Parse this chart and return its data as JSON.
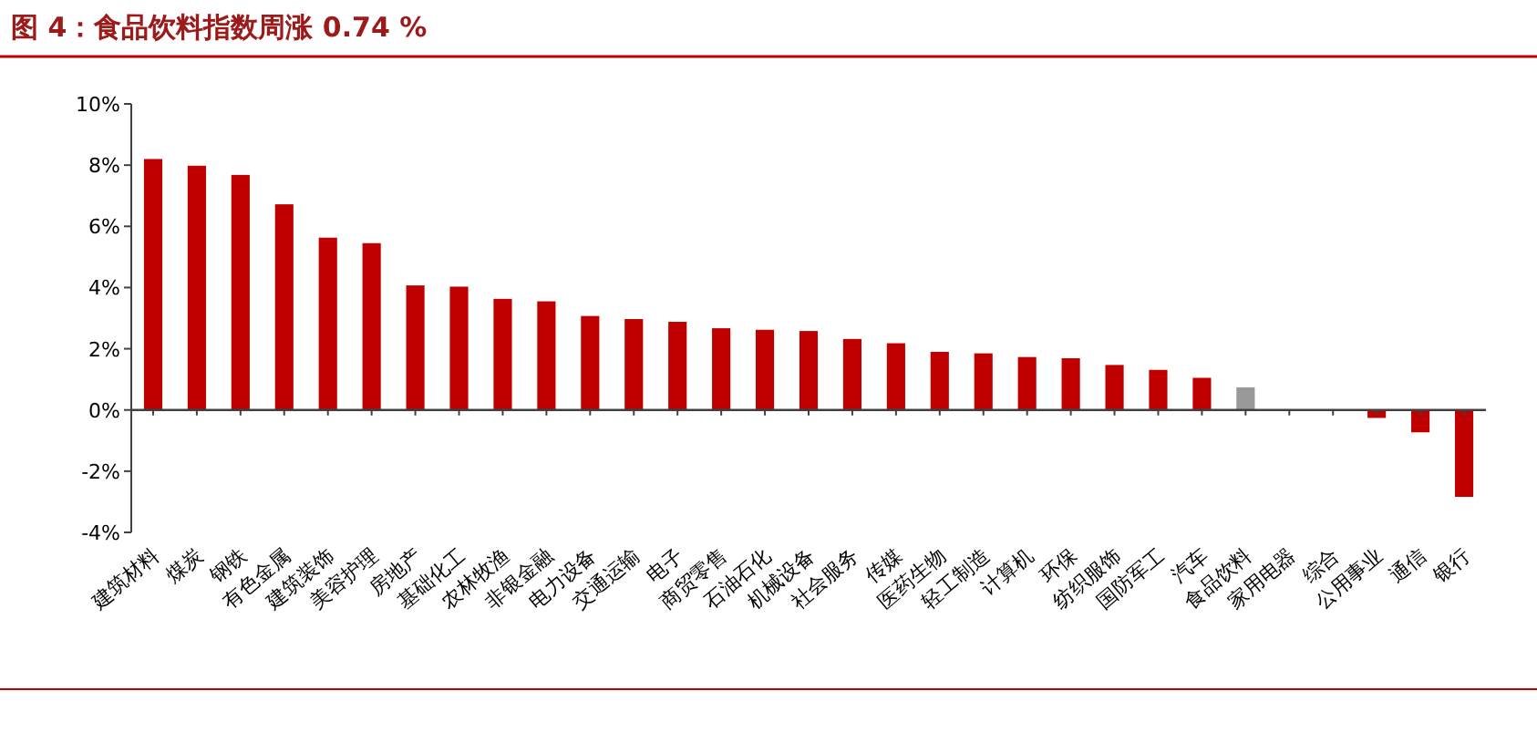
{
  "chart_data": {
    "type": "bar",
    "title": "图 4：食品饮料指数周涨 0.74 %",
    "categories": [
      "建筑材料",
      "煤炭",
      "钢铁",
      "有色金属",
      "建筑装饰",
      "美容护理",
      "房地产",
      "基础化工",
      "农林牧渔",
      "非银金融",
      "电力设备",
      "交通运输",
      "电子",
      "商贸零售",
      "石油石化",
      "机械设备",
      "社会服务",
      "传媒",
      "医药生物",
      "轻工制造",
      "计算机",
      "环保",
      "纺织服饰",
      "国防军工",
      "汽车",
      "食品饮料",
      "家用电器",
      "综合",
      "公用事业",
      "通信",
      "银行"
    ],
    "values": [
      8.2,
      7.98,
      7.68,
      6.72,
      5.63,
      5.45,
      4.07,
      4.03,
      3.63,
      3.55,
      3.07,
      2.97,
      2.88,
      2.67,
      2.62,
      2.58,
      2.32,
      2.18,
      1.9,
      1.85,
      1.73,
      1.69,
      1.47,
      1.31,
      1.05,
      0.74,
      0,
      0,
      -0.26,
      -0.73,
      -2.84
    ],
    "colors": [
      "#c00000",
      "#c00000",
      "#c00000",
      "#c00000",
      "#c00000",
      "#c00000",
      "#c00000",
      "#c00000",
      "#c00000",
      "#c00000",
      "#c00000",
      "#c00000",
      "#c00000",
      "#c00000",
      "#c00000",
      "#c00000",
      "#c00000",
      "#c00000",
      "#c00000",
      "#c00000",
      "#c00000",
      "#c00000",
      "#c00000",
      "#c00000",
      "#c00000",
      "#999999",
      "#c00000",
      "#c00000",
      "#c00000",
      "#c00000",
      "#c00000"
    ],
    "ylim": [
      -4,
      10
    ],
    "yticks": [
      {
        "value": -4,
        "label": "-4%"
      },
      {
        "value": -2,
        "label": "-2%"
      },
      {
        "value": 0,
        "label": "0%"
      },
      {
        "value": 2,
        "label": "2%"
      },
      {
        "value": 4,
        "label": "4%"
      },
      {
        "value": 6,
        "label": "6%"
      },
      {
        "value": 8,
        "label": "8%"
      },
      {
        "value": 10,
        "label": "10%"
      }
    ]
  }
}
